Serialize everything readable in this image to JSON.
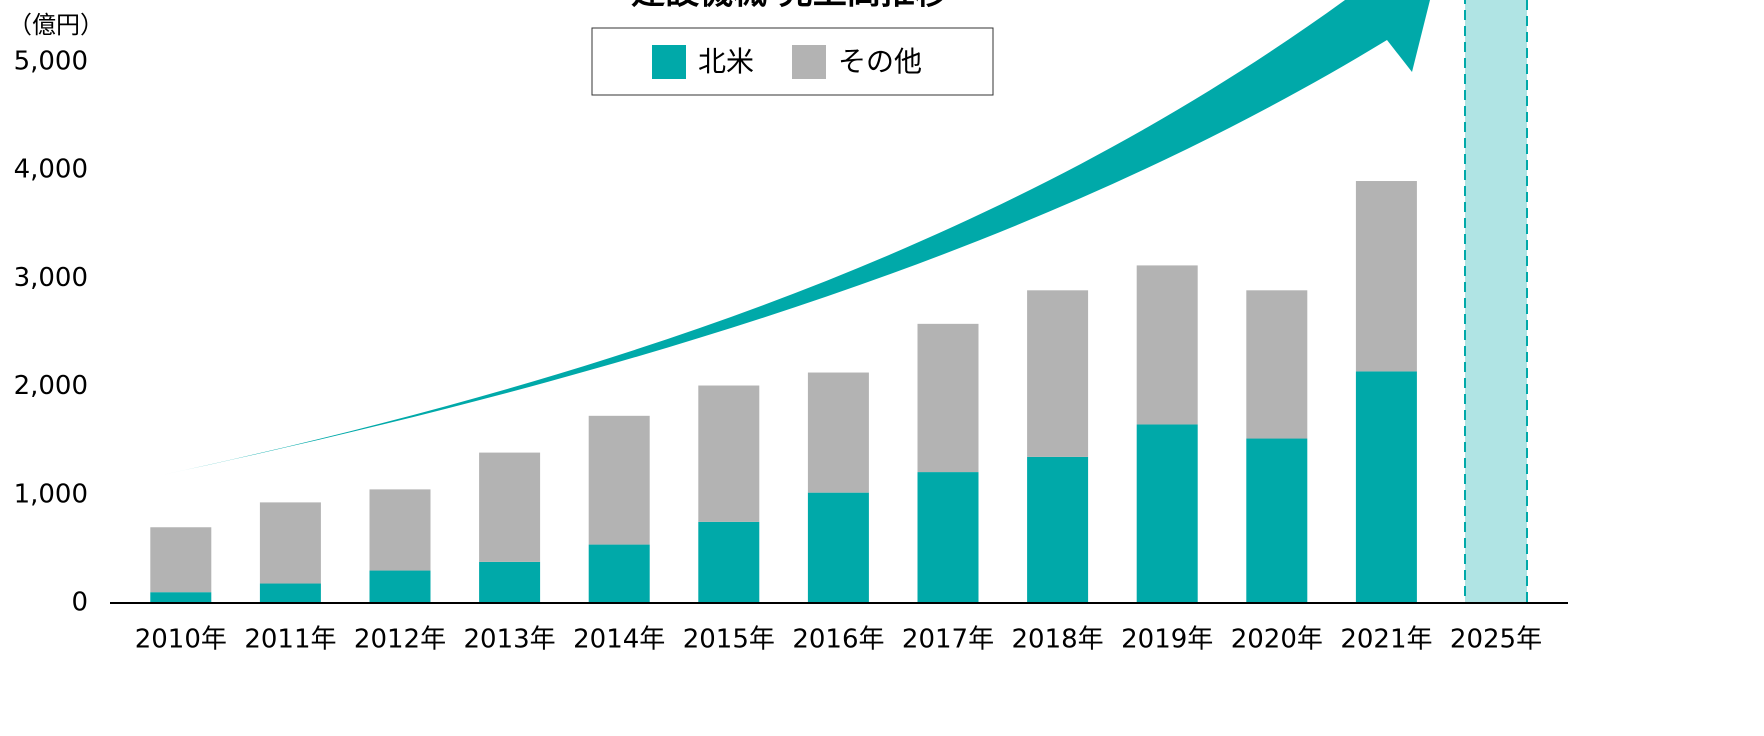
{
  "chart_data": {
    "type": "bar",
    "stacked": true,
    "title": "建設機械 売上高推移",
    "y_unit": "（億円）",
    "categories": [
      "2010年",
      "2011年",
      "2012年",
      "2013年",
      "2014年",
      "2015年",
      "2016年",
      "2017年",
      "2018年",
      "2019年",
      "2020年",
      "2021年",
      "2025年"
    ],
    "series": [
      {
        "name": "北米",
        "color": "#00a9a9",
        "values": [
          100,
          180,
          300,
          380,
          540,
          750,
          1020,
          1210,
          1350,
          1650,
          1520,
          2140,
          null
        ]
      },
      {
        "name": "その他",
        "color": "#b3b3b3",
        "values": [
          600,
          750,
          750,
          1010,
          1190,
          1260,
          1110,
          1370,
          1540,
          1470,
          1370,
          1760,
          null
        ]
      }
    ],
    "ylim": [
      0,
      5000
    ],
    "yticks": [
      0,
      {
        "value": 1000,
        "label": "1,000"
      },
      {
        "value": 2000,
        "label": "2,000"
      },
      {
        "value": 3000,
        "label": "3,000"
      },
      {
        "value": 4000,
        "label": "4,000"
      },
      {
        "value": 5000,
        "label": "5,000"
      }
    ],
    "grid": false,
    "legend": "top"
  }
}
